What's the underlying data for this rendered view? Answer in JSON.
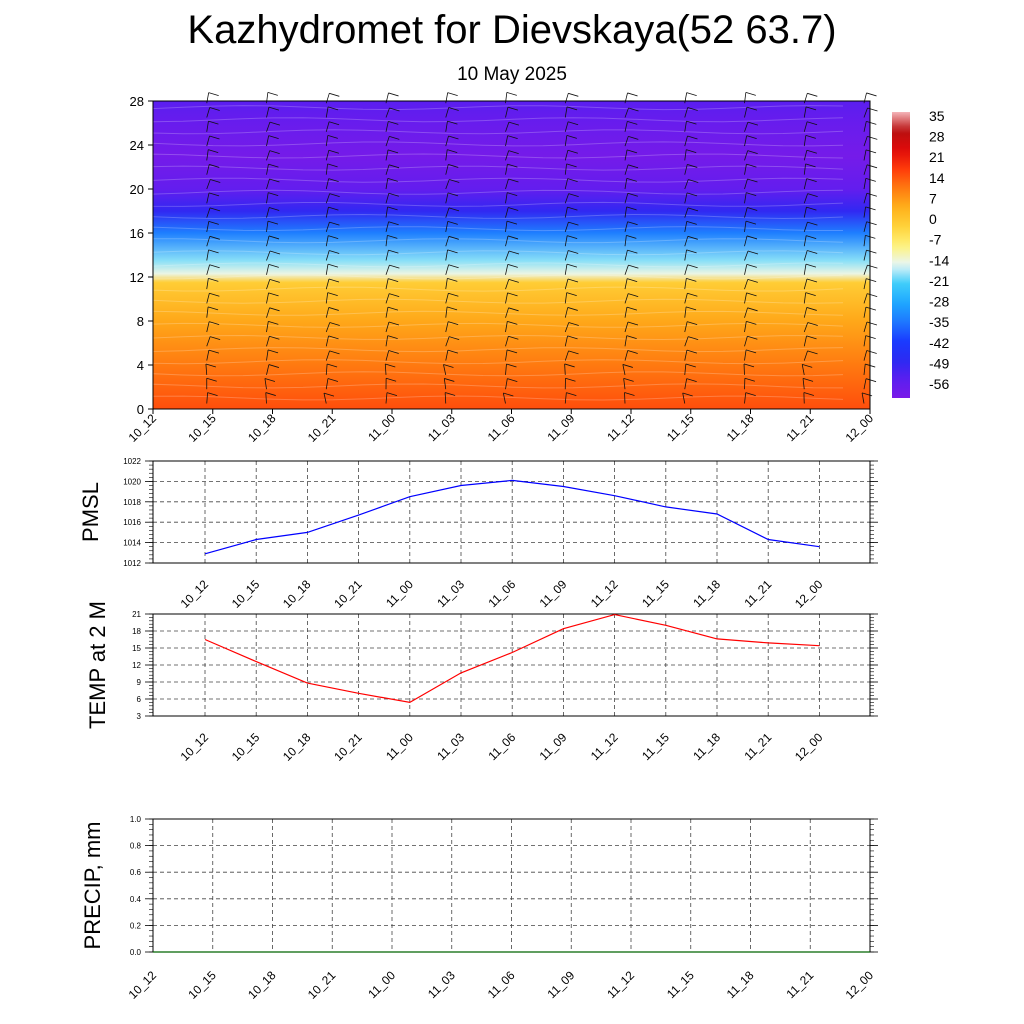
{
  "title": "Kazhydromet for Dievskaya(52 63.7)",
  "subtitle": "10 May 2025",
  "chart_data": [
    {
      "type": "heatmap",
      "title": "",
      "xlabel": "",
      "ylabel": "",
      "x_categories": [
        "10_12",
        "10_15",
        "10_18",
        "10_21",
        "11_00",
        "11_03",
        "11_06",
        "11_09",
        "11_12",
        "11_15",
        "11_18",
        "11_21",
        "12_00"
      ],
      "y_ticks": [
        0,
        4,
        8,
        12,
        16,
        20,
        24,
        28
      ],
      "ylim": [
        0,
        28
      ],
      "colorbar_labels": [
        "35",
        "28",
        "21",
        "14",
        "7",
        "0",
        "-7",
        "-14",
        "-21",
        "-28",
        "-35",
        "-42",
        "-49",
        "-56"
      ],
      "colorbar_range": [
        -63,
        42
      ],
      "temperature_profile": [
        {
          "height": 0,
          "value": 19
        },
        {
          "height": 4,
          "value": 14
        },
        {
          "height": 8,
          "value": 8
        },
        {
          "height": 11.5,
          "value": 1
        },
        {
          "height": 12.3,
          "value": -13
        },
        {
          "height": 13.5,
          "value": -18
        },
        {
          "height": 16,
          "value": -34
        },
        {
          "height": 18,
          "value": -50
        },
        {
          "height": 20,
          "value": -58
        },
        {
          "height": 23,
          "value": -62
        },
        {
          "height": 26,
          "value": -59
        },
        {
          "height": 28,
          "value": -56
        }
      ],
      "wind_barbs": "shown",
      "grid": false
    },
    {
      "type": "line",
      "ylabel": "PMSL",
      "categories": [
        "10_12",
        "10_15",
        "10_18",
        "10_21",
        "11_00",
        "11_03",
        "11_06",
        "11_09",
        "11_12",
        "11_15",
        "11_18",
        "11_21",
        "12_00"
      ],
      "series": [
        {
          "values": [
            1012.9,
            1014.3,
            1015.0,
            1016.7,
            1018.5,
            1019.6,
            1020.1,
            1019.5,
            1018.6,
            1017.5,
            1016.8,
            1014.3,
            1013.6
          ],
          "color": "#0000ff"
        }
      ],
      "y_ticks": [
        "1012",
        "1014",
        "1016",
        "1018",
        "1020",
        "1022"
      ],
      "ylim": [
        1012,
        1022
      ],
      "grid": true
    },
    {
      "type": "line",
      "ylabel": "TEMP at 2 M",
      "categories": [
        "10_12",
        "10_15",
        "10_18",
        "10_21",
        "11_00",
        "11_03",
        "11_06",
        "11_09",
        "11_12",
        "11_15",
        "11_18",
        "11_21",
        "12_00"
      ],
      "series": [
        {
          "values": [
            16.5,
            12.6,
            8.8,
            7.0,
            5.4,
            10.6,
            14.2,
            18.4,
            20.9,
            19.0,
            16.6,
            15.9,
            15.4
          ],
          "color": "#ff0000"
        }
      ],
      "y_ticks": [
        "3",
        "6",
        "9",
        "12",
        "15",
        "18",
        "21"
      ],
      "ylim": [
        3,
        21
      ],
      "grid": true
    },
    {
      "type": "line",
      "ylabel": "PRECIP, mm",
      "categories": [
        "10_12",
        "10_15",
        "10_18",
        "10_21",
        "11_00",
        "11_03",
        "11_06",
        "11_09",
        "11_12",
        "11_15",
        "11_18",
        "11_21",
        "12_00"
      ],
      "series": [
        {
          "values": [
            0,
            0,
            0,
            0,
            0,
            0,
            0,
            0,
            0,
            0,
            0,
            0,
            0
          ],
          "color": "#006400"
        }
      ],
      "y_ticks": [
        "0.0",
        "0.2",
        "0.4",
        "0.6",
        "0.8",
        "1.0"
      ],
      "ylim": [
        0,
        1
      ],
      "grid": true
    }
  ]
}
